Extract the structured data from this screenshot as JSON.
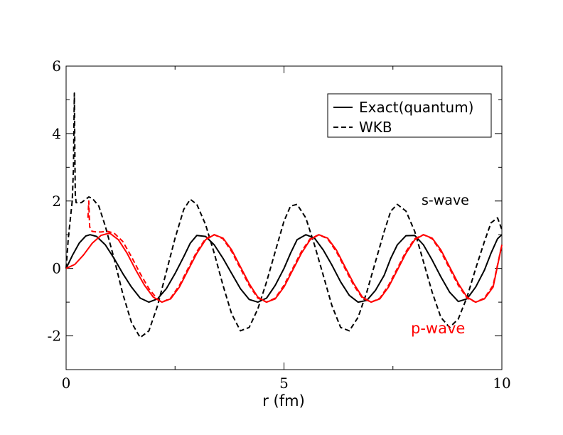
{
  "chart_data": {
    "type": "line",
    "xlabel": "r (fm)",
    "ylabel": "",
    "xlim": [
      0,
      10
    ],
    "ylim": [
      -3,
      6
    ],
    "x_ticks": [
      0,
      5,
      10
    ],
    "y_ticks": [
      -2,
      0,
      2,
      4,
      6
    ],
    "x_tick_labels": [
      "0",
      "5",
      "10"
    ],
    "y_tick_labels": [
      "-2",
      "0",
      "2",
      "4",
      "6"
    ],
    "grid": false,
    "legend": {
      "placement": "top-right",
      "entries": [
        {
          "label": "Exact(quantum)",
          "style": "solid",
          "color": "#000000"
        },
        {
          "label": "WKB",
          "style": "dashed",
          "color": "#000000"
        }
      ]
    },
    "annotations": [
      {
        "text": "s-wave",
        "x": 8.2,
        "y": 2.0,
        "color": "#000000"
      },
      {
        "text": "p-wave",
        "x": 7.9,
        "y": -1.8,
        "color": "#ff0000"
      }
    ],
    "series": [
      {
        "group": "s-wave",
        "method": "Exact(quantum)",
        "style": "solid",
        "color": "#000000",
        "x": [
          0,
          0.15,
          0.3,
          0.45,
          0.55,
          0.7,
          0.9,
          1.1,
          1.3,
          1.5,
          1.7,
          1.9,
          2.1,
          2.3,
          2.5,
          2.7,
          2.85,
          3.0,
          3.2,
          3.4,
          3.6,
          3.8,
          4.0,
          4.2,
          4.4,
          4.6,
          4.8,
          5.0,
          5.15,
          5.3,
          5.5,
          5.7,
          5.9,
          6.1,
          6.3,
          6.5,
          6.7,
          6.9,
          7.1,
          7.3,
          7.45,
          7.6,
          7.8,
          8.0,
          8.2,
          8.4,
          8.6,
          8.8,
          9.0,
          9.2,
          9.4,
          9.6,
          9.75,
          9.9,
          10.0
        ],
        "y": [
          0,
          0.4,
          0.75,
          0.96,
          1.0,
          0.95,
          0.7,
          0.3,
          -0.15,
          -0.55,
          -0.88,
          -1.0,
          -0.9,
          -0.6,
          -0.15,
          0.35,
          0.75,
          0.98,
          0.95,
          0.7,
          0.3,
          -0.15,
          -0.6,
          -0.92,
          -1.0,
          -0.88,
          -0.5,
          0.0,
          0.45,
          0.85,
          1.0,
          0.9,
          0.55,
          0.1,
          -0.4,
          -0.8,
          -1.0,
          -0.95,
          -0.65,
          -0.2,
          0.3,
          0.7,
          0.97,
          0.98,
          0.7,
          0.25,
          -0.25,
          -0.7,
          -0.98,
          -0.9,
          -0.55,
          -0.05,
          0.45,
          0.88,
          1.0
        ]
      },
      {
        "group": "s-wave",
        "method": "WKB",
        "style": "dashed",
        "color": "#000000",
        "x": [
          0,
          0.05,
          0.1,
          0.14,
          0.17,
          0.18,
          0.19,
          0.2,
          0.21,
          0.23,
          0.27,
          0.35,
          0.45,
          0.52,
          0.6,
          0.75,
          0.9,
          1.1,
          1.3,
          1.5,
          1.7,
          1.9,
          2.1,
          2.3,
          2.5,
          2.7,
          2.85,
          3.0,
          3.2,
          3.4,
          3.6,
          3.8,
          4.0,
          4.2,
          4.4,
          4.6,
          4.8,
          5.0,
          5.15,
          5.3,
          5.5,
          5.7,
          5.9,
          6.1,
          6.3,
          6.5,
          6.7,
          6.9,
          7.1,
          7.3,
          7.45,
          7.6,
          7.8,
          8.0,
          8.2,
          8.4,
          8.6,
          8.8,
          9.0,
          9.2,
          9.4,
          9.6,
          9.75,
          9.9,
          10.0
        ],
        "y": [
          0,
          0.9,
          1.5,
          2.0,
          3.0,
          4.2,
          5.2,
          3.5,
          2.2,
          1.95,
          1.95,
          1.95,
          2.05,
          2.12,
          2.08,
          1.85,
          1.25,
          0.3,
          -0.75,
          -1.6,
          -2.05,
          -1.85,
          -1.1,
          -0.1,
          0.9,
          1.75,
          2.05,
          1.9,
          1.3,
          0.45,
          -0.5,
          -1.35,
          -1.85,
          -1.75,
          -1.2,
          -0.4,
          0.5,
          1.4,
          1.85,
          1.9,
          1.5,
          0.7,
          -0.2,
          -1.1,
          -1.75,
          -1.85,
          -1.45,
          -0.7,
          0.2,
          1.1,
          1.7,
          1.9,
          1.7,
          1.1,
          0.2,
          -0.7,
          -1.45,
          -1.75,
          -1.5,
          -0.85,
          0.0,
          0.8,
          1.35,
          1.5,
          1.15
        ]
      },
      {
        "group": "p-wave",
        "method": "Exact(quantum)",
        "style": "solid",
        "color": "#ff0000",
        "x": [
          0,
          0.2,
          0.4,
          0.6,
          0.8,
          1.0,
          1.2,
          1.4,
          1.6,
          1.8,
          2.0,
          2.2,
          2.4,
          2.6,
          2.8,
          3.0,
          3.2,
          3.4,
          3.6,
          3.8,
          4.0,
          4.2,
          4.4,
          4.6,
          4.8,
          5.0,
          5.2,
          5.4,
          5.6,
          5.8,
          6.0,
          6.2,
          6.4,
          6.6,
          6.8,
          7.0,
          7.2,
          7.4,
          7.6,
          7.8,
          8.0,
          8.2,
          8.4,
          8.6,
          8.8,
          9.0,
          9.2,
          9.4,
          9.6,
          9.8,
          10.0
        ],
        "y": [
          0,
          0.12,
          0.4,
          0.75,
          0.98,
          1.05,
          0.85,
          0.45,
          -0.05,
          -0.5,
          -0.85,
          -1.0,
          -0.9,
          -0.55,
          -0.05,
          0.45,
          0.85,
          1.0,
          0.9,
          0.55,
          0.05,
          -0.45,
          -0.85,
          -1.0,
          -0.9,
          -0.55,
          -0.05,
          0.45,
          0.85,
          1.0,
          0.9,
          0.55,
          0.05,
          -0.45,
          -0.85,
          -1.0,
          -0.9,
          -0.55,
          -0.05,
          0.45,
          0.85,
          1.0,
          0.9,
          0.55,
          0.05,
          -0.45,
          -0.85,
          -1.0,
          -0.9,
          -0.55,
          0.7
        ]
      },
      {
        "group": "p-wave",
        "method": "WKB",
        "style": "dashed",
        "color": "#ff0000",
        "x": [
          0.5,
          0.52,
          0.53,
          0.54,
          0.56,
          0.6,
          0.7,
          0.8,
          0.95,
          1.1,
          1.3,
          1.5,
          1.7,
          1.9,
          2.1,
          2.2,
          2.4,
          2.6,
          2.8,
          3.0,
          3.2,
          3.4,
          3.6,
          3.8,
          4.0,
          4.2,
          4.4,
          4.6,
          4.8,
          5.0,
          5.2,
          5.4,
          5.6,
          5.8,
          6.0,
          6.2,
          6.4,
          6.6,
          6.8,
          7.0,
          7.2,
          7.4,
          7.6,
          7.8,
          8.0,
          8.2,
          8.4,
          8.6,
          8.8,
          9.0,
          9.2,
          9.4,
          9.6,
          9.8,
          10.0
        ],
        "y": [
          1.5,
          2.0,
          1.6,
          1.25,
          1.15,
          1.1,
          1.08,
          1.08,
          1.1,
          1.05,
          0.8,
          0.35,
          -0.15,
          -0.6,
          -0.92,
          -1.0,
          -0.88,
          -0.5,
          0.0,
          0.5,
          0.88,
          1.0,
          0.88,
          0.5,
          0.0,
          -0.5,
          -0.88,
          -1.0,
          -0.88,
          -0.5,
          0.0,
          0.5,
          0.88,
          1.0,
          0.88,
          0.5,
          0.0,
          -0.5,
          -0.88,
          -1.0,
          -0.88,
          -0.5,
          0.0,
          0.5,
          0.88,
          1.0,
          0.88,
          0.5,
          0.0,
          -0.5,
          -0.88,
          -1.0,
          -0.88,
          -0.5,
          0.7
        ]
      }
    ]
  }
}
